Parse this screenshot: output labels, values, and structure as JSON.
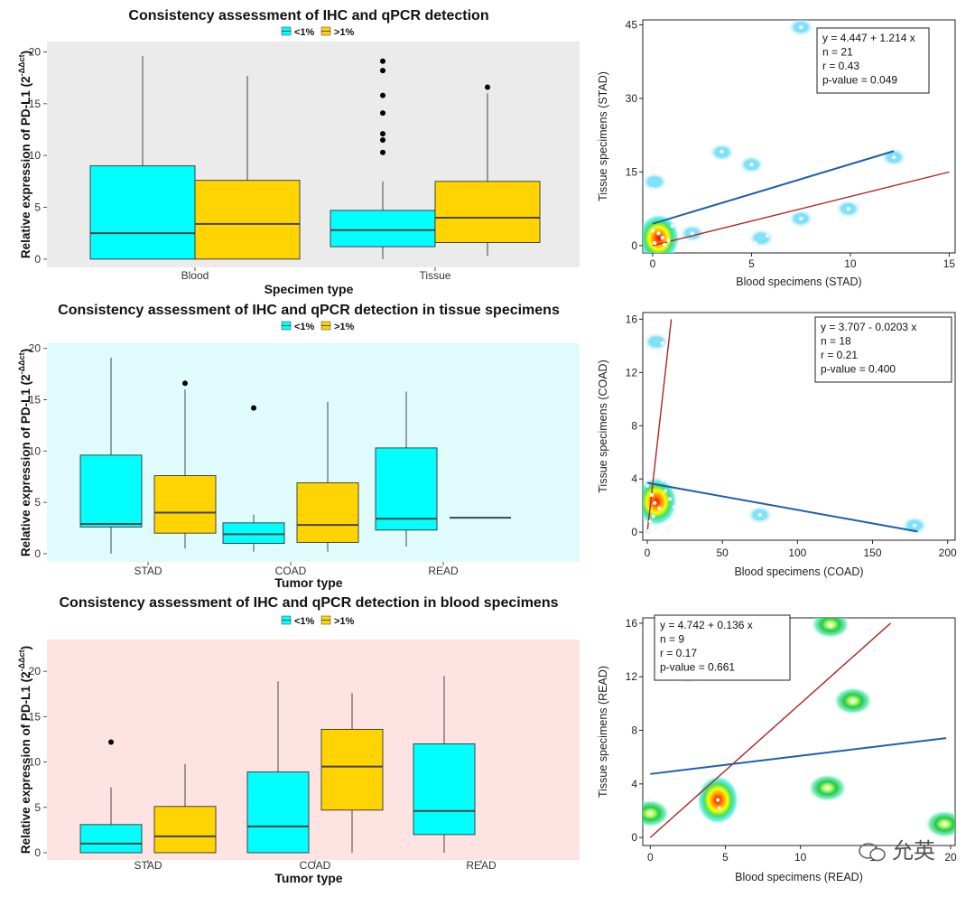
{
  "colors": {
    "low": "#00ffff",
    "high": "#ffd400",
    "panel1_bg": "#ebebeb",
    "panel2_bg": "#e0fbfc",
    "panel3_bg": "#fde3e1",
    "fit_blue": "#1f5fa8",
    "fit_red": "#b22222"
  },
  "watermark_text": "允英",
  "chart_data": [
    {
      "type": "box",
      "title": "Consistency assessment of IHC and qPCR detection",
      "legend": [
        "<1%",
        ">1%"
      ],
      "legend_position": "top",
      "xlabel": "Specimen type",
      "ylabel": "Relative expression of PD-L1 (2",
      "ylabel_sup": "-ΔΔct",
      "ylabel_close": ")",
      "ylim": [
        -0.8,
        21
      ],
      "yticks": [
        0,
        5,
        10,
        15,
        20
      ],
      "categories": [
        "Blood",
        "Tissue"
      ],
      "series": [
        {
          "name": "<1%",
          "boxes": [
            {
              "min": 0,
              "q1": 0,
              "median": 2.5,
              "q3": 9,
              "max": 19.6,
              "outliers": []
            },
            {
              "min": 0,
              "q1": 1.2,
              "median": 2.8,
              "q3": 4.7,
              "max": 7.5,
              "outliers": [
                10.3,
                11.5,
                12.1,
                14.1,
                15.8,
                18.2,
                19.1
              ]
            }
          ]
        },
        {
          "name": ">1%",
          "boxes": [
            {
              "min": 0,
              "q1": 0,
              "median": 3.4,
              "q3": 7.6,
              "max": 17.7,
              "outliers": []
            },
            {
              "min": 0.3,
              "q1": 1.6,
              "median": 4,
              "q3": 7.5,
              "max": 16,
              "outliers": [
                16.6
              ]
            }
          ]
        }
      ]
    },
    {
      "type": "box",
      "title": "Consistency assessment of IHC and qPCR detection in tissue specimens",
      "legend": [
        "<1%",
        ">1%"
      ],
      "legend_position": "top",
      "xlabel": "Tumor type",
      "ylabel": "Relative expression of PD-L1 (2",
      "ylabel_sup": "-ΔΔct",
      "ylabel_close": ")",
      "ylim": [
        -0.8,
        20.5
      ],
      "yticks": [
        0,
        5,
        10,
        15,
        20
      ],
      "categories": [
        "STAD",
        "COAD",
        "READ"
      ],
      "series": [
        {
          "name": "<1%",
          "boxes": [
            {
              "min": 0,
              "q1": 2.6,
              "median": 2.9,
              "q3": 9.6,
              "max": 19.1,
              "outliers": []
            },
            {
              "min": 0.2,
              "q1": 1.0,
              "median": 1.9,
              "q3": 3.0,
              "max": 3.8,
              "outliers": [
                14.2
              ]
            },
            {
              "min": 0.7,
              "q1": 2.3,
              "median": 3.4,
              "q3": 10.3,
              "max": 15.8,
              "outliers": []
            }
          ]
        },
        {
          "name": ">1%",
          "boxes": [
            {
              "min": 0.5,
              "q1": 2.0,
              "median": 4.0,
              "q3": 7.6,
              "max": 16,
              "outliers": [
                16.6
              ]
            },
            {
              "min": 0.2,
              "q1": 1.1,
              "median": 2.8,
              "q3": 6.9,
              "max": 14.8,
              "outliers": []
            },
            {
              "min": 3.5,
              "q1": 3.5,
              "median": 3.5,
              "q3": 3.5,
              "max": 3.5,
              "outliers": []
            }
          ]
        }
      ]
    },
    {
      "type": "box",
      "title": "Consistency assessment of IHC and qPCR detection in blood specimens",
      "legend": [
        "<1%",
        ">1%"
      ],
      "legend_position": "top",
      "xlabel": "Tumor type",
      "ylabel": "Relative expression of PD-L1 (2",
      "ylabel_sup": "-ΔΔct",
      "ylabel_close": ")",
      "ylim": [
        -0.8,
        23.5
      ],
      "yticks": [
        0,
        5,
        10,
        15,
        20
      ],
      "categories": [
        "STAD",
        "COAD",
        "READ"
      ],
      "series": [
        {
          "name": "<1%",
          "boxes": [
            {
              "min": 0,
              "q1": 0,
              "median": 1.0,
              "q3": 3.1,
              "max": 7.2,
              "outliers": [
                12.2
              ]
            },
            {
              "min": 0,
              "q1": 0,
              "median": 2.9,
              "q3": 8.9,
              "max": 18.9,
              "outliers": []
            },
            {
              "min": 0,
              "q1": 2.0,
              "median": 4.6,
              "q3": 12,
              "max": 19.5,
              "outliers": []
            }
          ]
        },
        {
          "name": ">1%",
          "boxes": [
            {
              "min": 0,
              "q1": 0,
              "median": 1.8,
              "q3": 5.1,
              "max": 9.8,
              "outliers": []
            },
            {
              "min": 0,
              "q1": 4.7,
              "median": 9.5,
              "q3": 13.6,
              "max": 17.6,
              "outliers": []
            },
            null
          ]
        }
      ]
    },
    {
      "type": "scatter",
      "xlabel": "Blood specimens (STAD)",
      "ylabel": "Tissue specimens (STAD)",
      "xlim": [
        -0.5,
        15.3
      ],
      "ylim": [
        -1.5,
        46
      ],
      "xticks": [
        0,
        5,
        10,
        15
      ],
      "yticks": [
        0,
        15,
        30,
        45
      ],
      "stats": [
        "y = 4.447 + 1.214  x",
        "n = 21",
        "r = 0.43",
        "p-value = 0.049"
      ],
      "stats_position": "top-right",
      "fit": {
        "intercept": 4.447,
        "slope": 1.214,
        "x": [
          0,
          12.2
        ]
      },
      "identity": {
        "x": [
          0,
          15
        ]
      },
      "points": [
        [
          0,
          15.5
        ],
        [
          0,
          11.5
        ],
        [
          0.2,
          7.5
        ],
        [
          0,
          3
        ],
        [
          0.3,
          2.5
        ],
        [
          0.5,
          1.6
        ],
        [
          0.1,
          0.5
        ],
        [
          0.8,
          1
        ],
        [
          2,
          2.5
        ],
        [
          1.5,
          0.5
        ],
        [
          3.5,
          19.2
        ],
        [
          5,
          16.5
        ],
        [
          3.5,
          4
        ],
        [
          5.8,
          2
        ],
        [
          5.2,
          0.5
        ],
        [
          7.5,
          5.5
        ],
        [
          9.9,
          7.5
        ],
        [
          7.5,
          44.5
        ],
        [
          12.2,
          18
        ],
        [
          0.6,
          0.2
        ],
        [
          1,
          4
        ]
      ],
      "hotspots": [
        [
          0.3,
          1.5,
          3
        ],
        [
          0.1,
          13,
          1
        ],
        [
          3.5,
          19,
          1
        ],
        [
          5,
          16.5,
          1
        ],
        [
          7.5,
          44.5,
          1
        ],
        [
          12.2,
          18,
          1
        ],
        [
          5.5,
          1.5,
          1
        ],
        [
          2,
          2.5,
          1
        ],
        [
          9.9,
          7.5,
          1
        ],
        [
          7.5,
          5.5,
          1
        ]
      ]
    },
    {
      "type": "scatter",
      "xlabel": "Blood specimens (COAD)",
      "ylabel": "Tissue specimens (COAD)",
      "xlim": [
        -3,
        205
      ],
      "ylim": [
        -0.6,
        16.5
      ],
      "xticks": [
        0,
        50,
        100,
        150,
        200
      ],
      "yticks": [
        0,
        4,
        8,
        12,
        16
      ],
      "stats": [
        "y = 3.707 - 0.0203 x",
        "n = 18",
        "r = 0.21",
        "p-value = 0.400"
      ],
      "stats_position": "top-right",
      "fit": {
        "intercept": 3.707,
        "slope": -0.0203,
        "x": [
          0,
          180
        ]
      },
      "identity": {
        "x": [
          0,
          16
        ]
      },
      "points": [
        [
          0,
          14.7
        ],
        [
          10,
          14.2
        ],
        [
          0,
          3.5
        ],
        [
          3,
          2.8
        ],
        [
          5,
          2.2
        ],
        [
          8,
          1.8
        ],
        [
          10,
          3.9
        ],
        [
          12,
          3.1
        ],
        [
          15,
          2.5
        ],
        [
          18,
          1.9
        ],
        [
          2,
          0.8
        ],
        [
          6,
          0.3
        ],
        [
          14,
          0.2
        ],
        [
          16,
          0.4
        ],
        [
          4,
          1.2
        ],
        [
          75,
          1.3
        ],
        [
          178,
          0.5
        ],
        [
          1,
          0.1
        ]
      ],
      "hotspots": [
        [
          6,
          2.3,
          3
        ],
        [
          6,
          14.3,
          1
        ],
        [
          75,
          1.3,
          1
        ],
        [
          178,
          0.5,
          1
        ]
      ]
    },
    {
      "type": "scatter",
      "xlabel": "Blood specimens (READ)",
      "ylabel": "Tissue specimens (READ)",
      "xlim": [
        -0.5,
        20.3
      ],
      "ylim": [
        -0.6,
        16.4
      ],
      "xticks": [
        0,
        5,
        10,
        15,
        20
      ],
      "xtick_labels": [
        "0",
        "5",
        "10",
        "15",
        "20"
      ],
      "yticks": [
        0,
        4,
        8,
        12,
        16
      ],
      "stats": [
        "y = 4.742 + 0.136 x",
        "n = 9",
        "r = 0.17",
        "p-value = 0.661"
      ],
      "stats_position": "top-left",
      "fit": {
        "intercept": 4.742,
        "slope": 0.136,
        "x": [
          0,
          19.7
        ]
      },
      "identity": {
        "x": [
          0,
          16
        ]
      },
      "points": [
        [
          0,
          2.8
        ],
        [
          0,
          0.7
        ],
        [
          4.5,
          2.8
        ],
        [
          4.6,
          2.2
        ],
        [
          12,
          15.8
        ],
        [
          13.5,
          10.2
        ],
        [
          11.8,
          3.7
        ],
        [
          19.6,
          1.0
        ],
        [
          2.5,
          12.2
        ]
      ],
      "hotspots": [
        [
          4.5,
          2.8,
          3
        ],
        [
          12,
          15.9,
          2
        ],
        [
          13.5,
          10.2,
          2
        ],
        [
          11.8,
          3.7,
          2
        ],
        [
          19.6,
          1.0,
          2
        ],
        [
          0,
          1.8,
          2
        ],
        [
          2.5,
          12.2,
          1.5
        ]
      ]
    }
  ]
}
